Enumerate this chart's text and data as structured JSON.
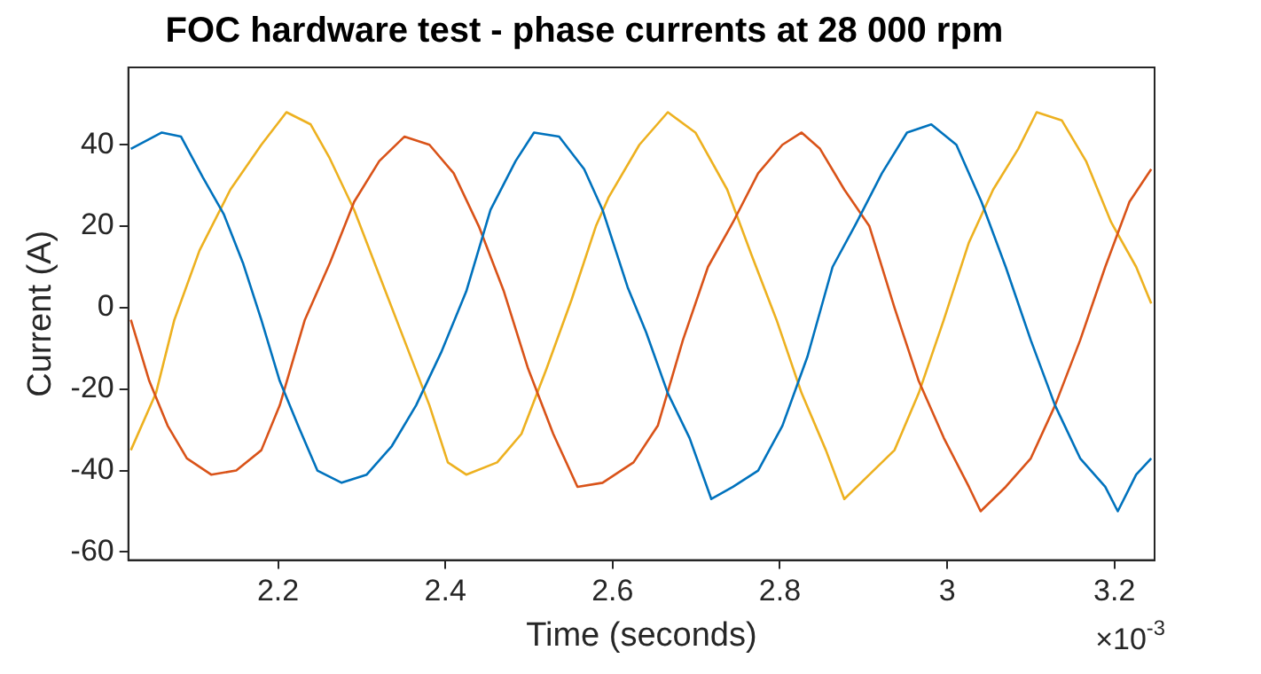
{
  "chart_data": {
    "type": "line",
    "title": "FOC hardware test - phase currents at 28 000 rpm",
    "xlabel": "Time (seconds)",
    "ylabel": "Current (A)",
    "annotations": [
      "×10$^{-3}$"
    ],
    "xlim": [
      2.021,
      3.248
    ],
    "xticks": [
      2.2,
      2.4,
      2.6,
      2.8,
      3,
      3.2
    ],
    "ylim": [
      -62,
      59
    ],
    "yticks": [
      -60,
      -40,
      -20,
      0,
      20,
      40
    ],
    "grid": false,
    "legend": false,
    "marker": "none",
    "line_style": "solid",
    "series": [
      {
        "color": "#0072bd",
        "x": [
          2.024,
          2.061,
          2.084,
          2.11,
          2.135,
          2.158,
          2.18,
          2.202,
          2.224,
          2.247,
          2.276,
          2.306,
          2.336,
          2.365,
          2.395,
          2.425,
          2.454,
          2.484,
          2.506,
          2.536,
          2.566,
          2.588,
          2.618,
          2.64,
          2.666,
          2.692,
          2.718,
          2.744,
          2.774,
          2.803,
          2.833,
          2.863,
          2.892,
          2.922,
          2.952,
          2.981,
          3.011,
          3.041,
          3.07,
          3.1,
          3.129,
          3.159,
          3.189,
          3.204,
          3.226,
          3.244
        ],
        "values": [
          39,
          43,
          42,
          32,
          23,
          11,
          -3,
          -18,
          -29,
          -40,
          -43,
          -41,
          -34,
          -24,
          -11,
          4,
          24,
          36,
          43,
          42,
          34,
          24,
          5,
          -6,
          -21,
          -32,
          -47,
          -44,
          -40,
          -29,
          -12,
          10,
          21,
          33,
          43,
          45,
          40,
          26,
          10,
          -8,
          -24,
          -37,
          -44,
          -50,
          -41,
          -37
        ]
      },
      {
        "color": "#d95319",
        "x": [
          2.024,
          2.046,
          2.068,
          2.091,
          2.12,
          2.15,
          2.18,
          2.202,
          2.232,
          2.262,
          2.291,
          2.321,
          2.351,
          2.381,
          2.41,
          2.44,
          2.47,
          2.499,
          2.529,
          2.558,
          2.588,
          2.625,
          2.654,
          2.684,
          2.714,
          2.744,
          2.774,
          2.803,
          2.826,
          2.848,
          2.877,
          2.907,
          2.937,
          2.966,
          2.996,
          3.026,
          3.04,
          3.07,
          3.1,
          3.129,
          3.159,
          3.189,
          3.218,
          3.244
        ],
        "values": [
          -3,
          -18,
          -29,
          -37,
          -41,
          -40,
          -35,
          -24,
          -3,
          11,
          26,
          36,
          42,
          40,
          33,
          20,
          4,
          -15,
          -31,
          -44,
          -43,
          -38,
          -29,
          -8,
          10,
          21,
          33,
          40,
          43,
          39,
          29,
          20,
          0,
          -18,
          -32,
          -44,
          -50,
          -44,
          -37,
          -24,
          -8,
          10,
          26,
          34
        ]
      },
      {
        "color": "#edb120",
        "x": [
          2.024,
          2.054,
          2.076,
          2.106,
          2.143,
          2.18,
          2.21,
          2.239,
          2.261,
          2.291,
          2.321,
          2.351,
          2.381,
          2.403,
          2.425,
          2.462,
          2.491,
          2.521,
          2.551,
          2.58,
          2.595,
          2.632,
          2.666,
          2.699,
          2.737,
          2.766,
          2.796,
          2.826,
          2.855,
          2.877,
          2.907,
          2.937,
          2.966,
          2.996,
          3.026,
          3.055,
          3.085,
          3.107,
          3.137,
          3.166,
          3.196,
          3.226,
          3.244
        ],
        "values": [
          -35,
          -21,
          -3,
          14,
          29,
          40,
          48,
          45,
          37,
          24,
          8,
          -8,
          -24,
          -38,
          -41,
          -38,
          -31,
          -15,
          2,
          20,
          27,
          40,
          48,
          43,
          29,
          13,
          -3,
          -21,
          -35,
          -47,
          -41,
          -35,
          -21,
          -3,
          16,
          29,
          39,
          48,
          46,
          36,
          21,
          10,
          1
        ]
      }
    ]
  }
}
